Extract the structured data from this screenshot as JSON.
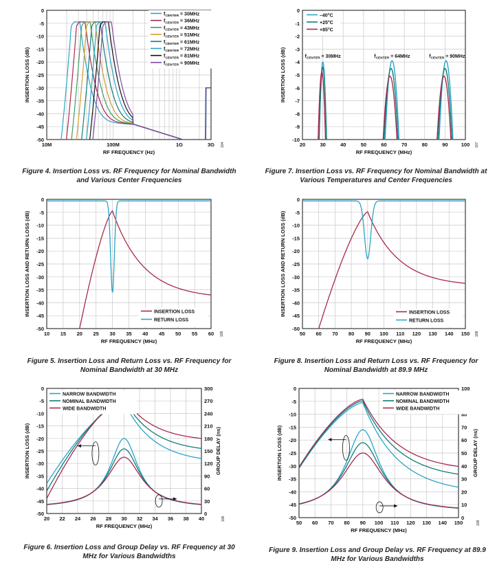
{
  "colors": {
    "teal": "#2aa3c8",
    "dteal": "#0e7d78",
    "crimson": "#a8284f",
    "green": "#3b9e64",
    "orange": "#d59a2c",
    "purple": "#7d4aa0",
    "black": "#111111",
    "axis": "#111111",
    "grid": "#c8c8c8"
  },
  "chart_data": [
    {
      "id": "fig4",
      "type": "line",
      "caption": "Figure 4. Insertion Loss vs. RF Frequency for Nominal Bandwidth and Various Center Frequencies",
      "code": "104",
      "xlabel": "RF FREQUENCY (Hz)",
      "ylabel": "INSERTION LOSS (dB)",
      "xscale": "log",
      "xlim": [
        10,
        3000
      ],
      "ylim": [
        -50,
        0
      ],
      "xticks": [
        {
          "v": 10,
          "l": "10M"
        },
        {
          "v": 100,
          "l": "100M"
        },
        {
          "v": 1000,
          "l": "1G"
        },
        {
          "v": 3000,
          "l": "3G"
        }
      ],
      "yticks": [
        0,
        -5,
        -10,
        -15,
        -20,
        -25,
        -30,
        -35,
        -40,
        -45,
        -50
      ],
      "legend_prefix": "f",
      "legend_sub": "CENTER",
      "series": [
        {
          "name": "= 30MHz",
          "center": 30,
          "color": "teal"
        },
        {
          "name": "= 36MHz",
          "center": 36,
          "color": "crimson"
        },
        {
          "name": "= 43MHz",
          "center": 43,
          "color": "green"
        },
        {
          "name": "= 51MHz",
          "center": 51,
          "color": "orange"
        },
        {
          "name": "= 61MHz",
          "center": 61,
          "color": "dteal"
        },
        {
          "name": "= 72MHz",
          "center": 72,
          "color": "teal"
        },
        {
          "name": "= 81MHz",
          "center": 81,
          "color": "black"
        },
        {
          "name": "= 90MHz",
          "center": 90,
          "color": "purple"
        }
      ]
    },
    {
      "id": "fig7",
      "type": "line",
      "caption": "Figure 7. Insertion Loss vs. RF Frequency for Nominal Bandwidth at Various Temperatures and Center Frequencies",
      "code": "107",
      "xlabel": "RF FREQUENCY (MHz)",
      "ylabel": "INSERTION LOSS (dB)",
      "xlim": [
        20,
        100
      ],
      "ylim": [
        -10,
        0
      ],
      "xticks": [
        20,
        30,
        40,
        50,
        60,
        70,
        80,
        90,
        100
      ],
      "yticks": [
        0,
        -1,
        -2,
        -3,
        -4,
        -5,
        -6,
        -7,
        -8,
        -9,
        -10
      ],
      "annotations": [
        {
          "prefix": "f",
          "sub": "CENTER",
          "text": " = 30MHz",
          "x": 30
        },
        {
          "prefix": "f",
          "sub": "CENTER",
          "text": " = 64MHz",
          "x": 64
        },
        {
          "prefix": "f",
          "sub": "CENTER",
          "text": " = 90MHz",
          "x": 91
        }
      ],
      "series": [
        {
          "name": "–40°C",
          "color": "teal",
          "peaks": [
            {
              "x": 30,
              "y": -4.0
            },
            {
              "x": 64,
              "y": -3.9
            },
            {
              "x": 90.5,
              "y": -3.9
            }
          ]
        },
        {
          "name": "+25°C",
          "color": "dteal",
          "peaks": [
            {
              "x": 30,
              "y": -4.4
            },
            {
              "x": 63.5,
              "y": -4.5
            },
            {
              "x": 90,
              "y": -4.5
            }
          ]
        },
        {
          "name": "+85°C",
          "color": "crimson",
          "peaks": [
            {
              "x": 29.5,
              "y": -4.8
            },
            {
              "x": 63,
              "y": -5.1
            },
            {
              "x": 89.5,
              "y": -5.1
            }
          ]
        }
      ]
    },
    {
      "id": "fig5",
      "type": "line",
      "caption": "Figure 5. Insertion Loss and Return Loss vs. RF Frequency for Nominal Bandwidth at 30 MHz",
      "code": "105",
      "xlabel": "RF FREQUENCY (MHz)",
      "ylabel": "INSERTION LOSS AND RETURN LOSS (dB)",
      "xlim": [
        10,
        60
      ],
      "ylim": [
        -50,
        0
      ],
      "xticks": [
        10,
        15,
        20,
        25,
        30,
        35,
        40,
        45,
        50,
        55,
        60
      ],
      "yticks": [
        0,
        -5,
        -10,
        -15,
        -20,
        -25,
        -30,
        -35,
        -40,
        -45,
        -50
      ],
      "series": [
        {
          "name": "INSERTION LOSS",
          "color": "crimson",
          "center": 30,
          "peak": -4.5,
          "lo_end": [
            20,
            -50
          ],
          "hi_end": [
            60,
            -37
          ]
        },
        {
          "name": "RETURN LOSS",
          "color": "teal",
          "center": 30,
          "depth": -36
        }
      ]
    },
    {
      "id": "fig8",
      "type": "line",
      "caption": "Figure 8. Insertion Loss and Return Loss vs. RF Frequency for Nominal Bandwidth at 89.9 MHz",
      "code": "108",
      "xlabel": "RF FREQUENCY (MHz)",
      "ylabel": "INSERTION LOSS AND RETURN LOSS (dB)",
      "xlim": [
        50,
        150
      ],
      "ylim": [
        -50,
        0
      ],
      "xticks": [
        50,
        60,
        70,
        80,
        90,
        100,
        110,
        120,
        130,
        140,
        150
      ],
      "yticks": [
        0,
        -5,
        -10,
        -15,
        -20,
        -25,
        -30,
        -35,
        -40,
        -45,
        -50
      ],
      "series": [
        {
          "name": "INSERTION LOSS",
          "color": "crimson",
          "center": 90,
          "peak": -4.8,
          "lo_end": [
            60,
            -50
          ],
          "hi_end": [
            150,
            -32.5
          ]
        },
        {
          "name": "RETURN LOSS",
          "color": "teal",
          "center": 90,
          "depth": -23
        }
      ]
    },
    {
      "id": "fig6",
      "type": "line",
      "caption": "Figure 6. Insertion Loss and Group Delay vs. RF Frequency at 30 MHz for Various Bandwidths",
      "code": "106",
      "xlabel": "RF FREQUENCY (MHz)",
      "ylabel": "INSERTION LOSS (dB)",
      "y2label": "GROUP DELAY (ns)",
      "xlim": [
        20,
        40
      ],
      "ylim": [
        -50,
        0
      ],
      "y2lim": [
        0,
        300
      ],
      "xticks": [
        20,
        22,
        24,
        26,
        28,
        30,
        32,
        34,
        36,
        38,
        40
      ],
      "yticks": [
        0,
        -5,
        -10,
        -15,
        -20,
        -25,
        -30,
        -35,
        -40,
        -45,
        -50
      ],
      "y2ticks": [
        300,
        270,
        240,
        210,
        180,
        150,
        120,
        90,
        60,
        30,
        0
      ],
      "series": [
        {
          "name": "NARROW BANDWIDTH",
          "color": "teal",
          "il_peak": -5.5,
          "il_edges": [
            -38,
            -28
          ],
          "gd_peak": 180
        },
        {
          "name": "NOMINAL BANDWIDTH",
          "color": "dteal",
          "il_peak": -4.5,
          "il_edges": [
            -41,
            -24
          ],
          "gd_peak": 155
        },
        {
          "name": "WIDE BANDWIDTH",
          "color": "crimson",
          "il_peak": -4.0,
          "il_edges": [
            -44,
            -20
          ],
          "gd_peak": 135
        }
      ]
    },
    {
      "id": "fig9",
      "type": "line",
      "caption": "Figure 9. Insertion Loss and Group Delay vs. RF Frequency at 89.9 MHz for Various Bandwidths",
      "code": "109",
      "xlabel": "RF FREQUENCY (MHz)",
      "ylabel": "INSERTION LOSS (dB)",
      "y2label": "GROUP DELAY (ns)",
      "xlim": [
        50,
        150
      ],
      "ylim": [
        -50,
        0
      ],
      "y2lim": [
        0,
        100
      ],
      "xticks": [
        50,
        60,
        70,
        80,
        90,
        100,
        110,
        120,
        130,
        140,
        150
      ],
      "yticks": [
        0,
        -5,
        -10,
        -15,
        -20,
        -25,
        -30,
        -35,
        -40,
        -45,
        -50
      ],
      "y2ticks": [
        100,
        90,
        80,
        70,
        60,
        50,
        40,
        30,
        20,
        10,
        0
      ],
      "series": [
        {
          "name": "NARROW BANDWIDTH",
          "color": "teal",
          "il_peak": -5.5,
          "il_hi": -38,
          "gd_peak": 68
        },
        {
          "name": "NOMINAL BANDWIDTH",
          "color": "dteal",
          "il_peak": -4.8,
          "il_hi": -33,
          "gd_peak": 58
        },
        {
          "name": "WIDE BANDWIDTH",
          "color": "crimson",
          "il_peak": -4.2,
          "il_hi": -30,
          "gd_peak": 50
        }
      ]
    }
  ]
}
